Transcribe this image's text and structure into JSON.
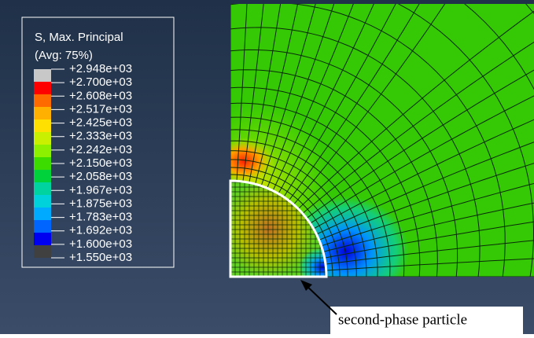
{
  "legend": {
    "title": "S, Max. Principal",
    "subtitle": "(Avg: 75%)",
    "labels": [
      "+2.948e+03",
      "+2.700e+03",
      "+2.608e+03",
      "+2.517e+03",
      "+2.425e+03",
      "+2.333e+03",
      "+2.242e+03",
      "+2.150e+03",
      "+2.058e+03",
      "+1.967e+03",
      "+1.875e+03",
      "+1.783e+03",
      "+1.692e+03",
      "+1.600e+03",
      "+1.550e+03"
    ],
    "colors": [
      "#c8c8c8",
      "#ff0000",
      "#ff6a00",
      "#ffb000",
      "#ffe000",
      "#c8f000",
      "#8cf000",
      "#3cdc00",
      "#00d23c",
      "#00d2a0",
      "#00d2dc",
      "#00aaff",
      "#0064ff",
      "#0000f0",
      "#404040"
    ]
  },
  "annotation": "second-phase particle"
}
